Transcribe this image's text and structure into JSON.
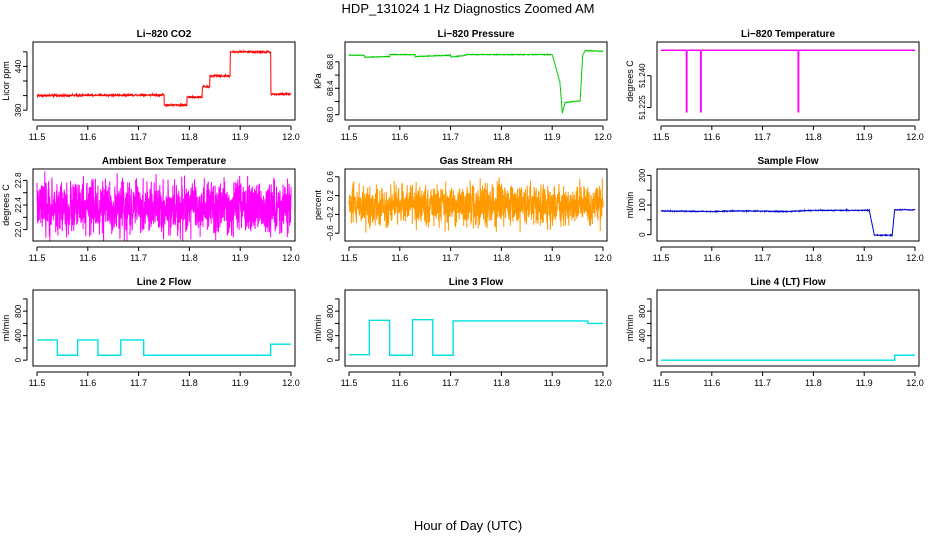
{
  "figure": {
    "title": "HDP_131024  1 Hz Diagnostics Zoomed AM",
    "xlabel": "Hour of Day (UTC)"
  },
  "chart_data": [
    {
      "type": "line",
      "title": "Li−820 CO2",
      "ylabel": "Licor ppm",
      "color": "#ff0000",
      "xlim": [
        11.5,
        12.0
      ],
      "ylim": [
        372,
        468
      ],
      "xticks": [
        11.5,
        11.6,
        11.7,
        11.8,
        11.9,
        12.0
      ],
      "xtick_labels": [
        "11.5",
        "11.6",
        "11.7",
        "11.8",
        "11.9",
        "12.0"
      ],
      "yticks": [
        380,
        400,
        420,
        440,
        460
      ],
      "ytick_labels": [
        "380",
        "",
        "",
        "440",
        ""
      ],
      "noise": 1.0,
      "x": [
        11.5,
        11.75,
        11.75,
        11.795,
        11.795,
        11.825,
        11.825,
        11.84,
        11.84,
        11.88,
        11.88,
        11.96,
        11.96,
        12.0
      ],
      "y": [
        400,
        401,
        387,
        387,
        398,
        398,
        412,
        412,
        427,
        427,
        460,
        460,
        402,
        402
      ]
    },
    {
      "type": "line",
      "title": "Li−820 Pressure",
      "ylabel": "kPa",
      "color": "#00cc00",
      "xlim": [
        11.5,
        12.0
      ],
      "ylim": [
        67.98,
        69.04
      ],
      "xticks": [
        11.5,
        11.6,
        11.7,
        11.8,
        11.9,
        12.0
      ],
      "xtick_labels": [
        "11.5",
        "11.6",
        "11.7",
        "11.8",
        "11.9",
        "12.0"
      ],
      "yticks": [
        68.0,
        68.2,
        68.4,
        68.6,
        68.8
      ],
      "ytick_labels": [
        "68.0",
        "",
        "68.4",
        "",
        "68.8"
      ],
      "noise": 0.004,
      "x": [
        11.5,
        11.53,
        11.53,
        11.58,
        11.58,
        11.63,
        11.63,
        11.7,
        11.7,
        11.73,
        11.73,
        11.9,
        11.915,
        11.92,
        11.925,
        11.93,
        11.955,
        11.96,
        11.965,
        12.0
      ],
      "y": [
        68.9,
        68.9,
        68.87,
        68.88,
        68.91,
        68.91,
        68.88,
        68.9,
        68.87,
        68.9,
        68.91,
        68.91,
        68.5,
        68.02,
        68.18,
        68.19,
        68.21,
        68.9,
        68.97,
        68.96
      ]
    },
    {
      "type": "line",
      "title": "Li−820 Temperature",
      "ylabel": "degrees C",
      "color": "#ff00ff",
      "xlim": [
        11.5,
        12.0
      ],
      "ylim": [
        51.221,
        51.254
      ],
      "xticks": [
        11.5,
        11.6,
        11.7,
        11.8,
        11.9,
        12.0
      ],
      "xtick_labels": [
        "11.5",
        "11.6",
        "11.7",
        "11.8",
        "11.9",
        "12.0"
      ],
      "yticks": [
        51.225,
        51.24
      ],
      "ytick_labels": [
        "51.225",
        "51.240"
      ],
      "noise": 0,
      "x": [
        11.5,
        11.55,
        11.55,
        11.551,
        11.551,
        11.578,
        11.578,
        11.579,
        11.579,
        11.77,
        11.77,
        11.771,
        11.771,
        12.0
      ],
      "y": [
        51.252,
        51.252,
        51.223,
        51.223,
        51.252,
        51.252,
        51.223,
        51.223,
        51.252,
        51.252,
        51.223,
        51.223,
        51.252,
        51.252
      ]
    },
    {
      "type": "line",
      "title": "Ambient Box Temperature",
      "ylabel": "degrees C",
      "color": "#ff00ff",
      "xlim": [
        11.5,
        12.0
      ],
      "ylim": [
        21.88,
        22.92
      ],
      "xticks": [
        11.5,
        11.6,
        11.7,
        11.8,
        11.9,
        12.0
      ],
      "xtick_labels": [
        "11.5",
        "11.6",
        "11.7",
        "11.8",
        "11.9",
        "12.0"
      ],
      "yticks": [
        22.0,
        22.2,
        22.4,
        22.6,
        22.8
      ],
      "ytick_labels": [
        "22.0",
        "",
        "22.4",
        "",
        "22.8"
      ],
      "noise": 0.3,
      "x": [
        11.5,
        12.0
      ],
      "y": [
        22.35,
        22.35
      ]
    },
    {
      "type": "line",
      "title": "Gas Stream RH",
      "ylabel": "percent",
      "color": "#ff9900",
      "xlim": [
        11.5,
        12.0
      ],
      "ylim": [
        -0.68,
        0.68
      ],
      "xticks": [
        11.5,
        11.6,
        11.7,
        11.8,
        11.9,
        12.0
      ],
      "xtick_labels": [
        "11.5",
        "11.6",
        "11.7",
        "11.8",
        "11.9",
        "12.0"
      ],
      "yticks": [
        -0.6,
        -0.2,
        0.2,
        0.6
      ],
      "ytick_labels": [
        "−0.6",
        "−0.2",
        "0.2",
        "0.6"
      ],
      "noise": 0.3,
      "x": [
        11.5,
        12.0
      ],
      "y": [
        0.0,
        0.0
      ]
    },
    {
      "type": "line",
      "title": "Sample Flow",
      "ylabel": "ml/min",
      "color": "#0000cc",
      "xlim": [
        11.5,
        12.0
      ],
      "ylim": [
        -8,
        208
      ],
      "xticks": [
        11.5,
        11.6,
        11.7,
        11.8,
        11.9,
        12.0
      ],
      "xtick_labels": [
        "11.5",
        "11.6",
        "11.7",
        "11.8",
        "11.9",
        "12.0"
      ],
      "yticks": [
        0,
        50,
        100,
        150,
        200
      ],
      "ytick_labels": [
        "0",
        "",
        "100",
        "",
        "200"
      ],
      "noise": 1.2,
      "x": [
        11.5,
        11.6,
        11.65,
        11.7,
        11.75,
        11.8,
        11.91,
        11.92,
        11.955,
        11.96,
        12.0
      ],
      "y": [
        80,
        78,
        80,
        79,
        78,
        82,
        82,
        -2,
        -2,
        84,
        84
      ]
    },
    {
      "type": "line",
      "title": "Line 2 Flow",
      "ylabel": "ml/min",
      "color": "#00e0e0",
      "xlim": [
        11.5,
        12.0
      ],
      "ylim": [
        -30,
        1080
      ],
      "xticks": [
        11.5,
        11.6,
        11.7,
        11.8,
        11.9,
        12.0
      ],
      "xtick_labels": [
        "11.5",
        "11.6",
        "11.7",
        "11.8",
        "11.9",
        "12.0"
      ],
      "yticks": [
        0,
        200,
        400,
        600,
        800,
        1000
      ],
      "ytick_labels": [
        "0",
        "",
        "400",
        "",
        "800",
        ""
      ],
      "noise": 0,
      "x": [
        11.5,
        11.54,
        11.54,
        11.58,
        11.58,
        11.62,
        11.62,
        11.665,
        11.665,
        11.71,
        11.71,
        11.96,
        11.96,
        12.0
      ],
      "y": [
        330,
        330,
        80,
        80,
        330,
        330,
        80,
        80,
        330,
        330,
        80,
        80,
        260,
        260
      ]
    },
    {
      "type": "line",
      "title": "Line 3 Flow",
      "ylabel": "ml/min",
      "color": "#00e0e0",
      "xlim": [
        11.5,
        12.0
      ],
      "ylim": [
        -30,
        1080
      ],
      "xticks": [
        11.5,
        11.6,
        11.7,
        11.8,
        11.9,
        12.0
      ],
      "xtick_labels": [
        "11.5",
        "11.6",
        "11.7",
        "11.8",
        "11.9",
        "12.0"
      ],
      "yticks": [
        0,
        200,
        400,
        600,
        800,
        1000
      ],
      "ytick_labels": [
        "0",
        "",
        "400",
        "",
        "800",
        ""
      ],
      "noise": 0,
      "x": [
        11.5,
        11.54,
        11.54,
        11.58,
        11.58,
        11.625,
        11.625,
        11.665,
        11.665,
        11.705,
        11.705,
        11.97,
        11.97,
        12.0
      ],
      "y": [
        90,
        90,
        650,
        650,
        80,
        80,
        660,
        660,
        80,
        80,
        640,
        640,
        600,
        600
      ]
    },
    {
      "type": "line",
      "title": "Line 4 (LT) Flow",
      "ylabel": "ml/min",
      "color": "#00e0e0",
      "xlim": [
        11.5,
        12.0
      ],
      "ylim": [
        -30,
        1080
      ],
      "xticks": [
        11.5,
        11.6,
        11.7,
        11.8,
        11.9,
        12.0
      ],
      "xtick_labels": [
        "11.5",
        "11.6",
        "11.7",
        "11.8",
        "11.9",
        "12.0"
      ],
      "yticks": [
        0,
        200,
        400,
        600,
        800,
        1000
      ],
      "ytick_labels": [
        "0",
        "",
        "400",
        "",
        "800",
        ""
      ],
      "noise": 0,
      "x": [
        11.5,
        11.96,
        11.96,
        12.0
      ],
      "y": [
        0,
        0,
        80,
        80
      ]
    }
  ]
}
